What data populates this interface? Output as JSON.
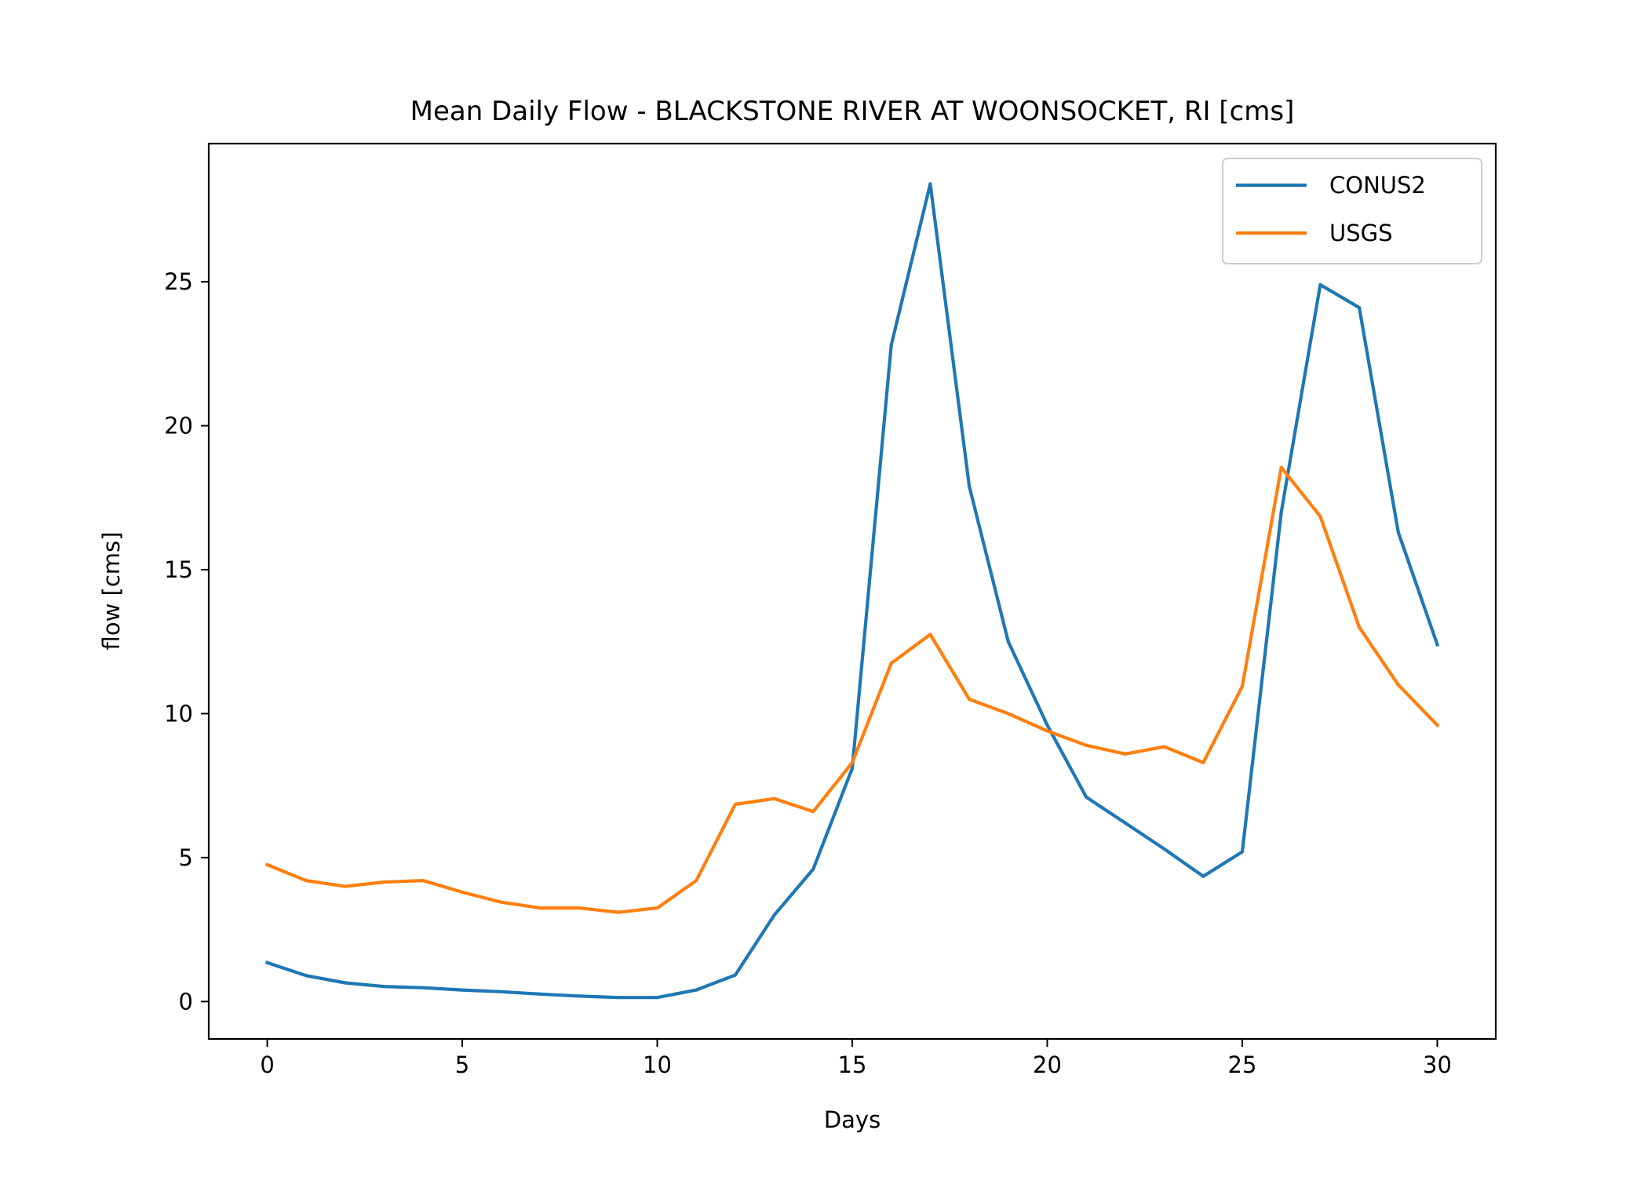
{
  "chart_data": {
    "type": "line",
    "title": "Mean Daily Flow - BLACKSTONE RIVER AT WOONSOCKET, RI [cms]",
    "xlabel": "Days",
    "ylabel": "flow [cms]",
    "xlim": [
      -1.5,
      31.5
    ],
    "ylim": [
      -1.3,
      29.8
    ],
    "xticks": [
      0,
      5,
      10,
      15,
      20,
      25,
      30
    ],
    "yticks": [
      0,
      5,
      10,
      15,
      20,
      25
    ],
    "grid": false,
    "legend_position": "top-right",
    "x": [
      0,
      1,
      2,
      3,
      4,
      5,
      6,
      7,
      8,
      9,
      10,
      11,
      12,
      13,
      14,
      15,
      16,
      17,
      18,
      19,
      20,
      21,
      22,
      23,
      24,
      25,
      26,
      27,
      28,
      29,
      30
    ],
    "series": [
      {
        "name": "CONUS2",
        "color": "#1f77b4",
        "values": [
          1.35,
          0.9,
          0.65,
          0.52,
          0.48,
          0.4,
          0.34,
          0.26,
          0.19,
          0.14,
          0.14,
          0.4,
          0.92,
          3.0,
          4.6,
          8.1,
          22.8,
          28.4,
          17.9,
          12.5,
          9.6,
          7.1,
          6.2,
          5.3,
          4.35,
          5.2,
          17.0,
          24.9,
          24.1,
          16.3,
          12.4
        ]
      },
      {
        "name": "USGS",
        "color": "#ff7f0e",
        "values": [
          4.75,
          4.2,
          4.0,
          4.15,
          4.2,
          3.8,
          3.45,
          3.25,
          3.25,
          3.1,
          3.25,
          4.2,
          6.85,
          7.05,
          6.6,
          8.3,
          11.75,
          12.75,
          10.5,
          10.0,
          9.4,
          8.9,
          8.6,
          8.85,
          8.3,
          10.95,
          18.55,
          16.85,
          13.0,
          11.0,
          9.6
        ]
      }
    ]
  }
}
